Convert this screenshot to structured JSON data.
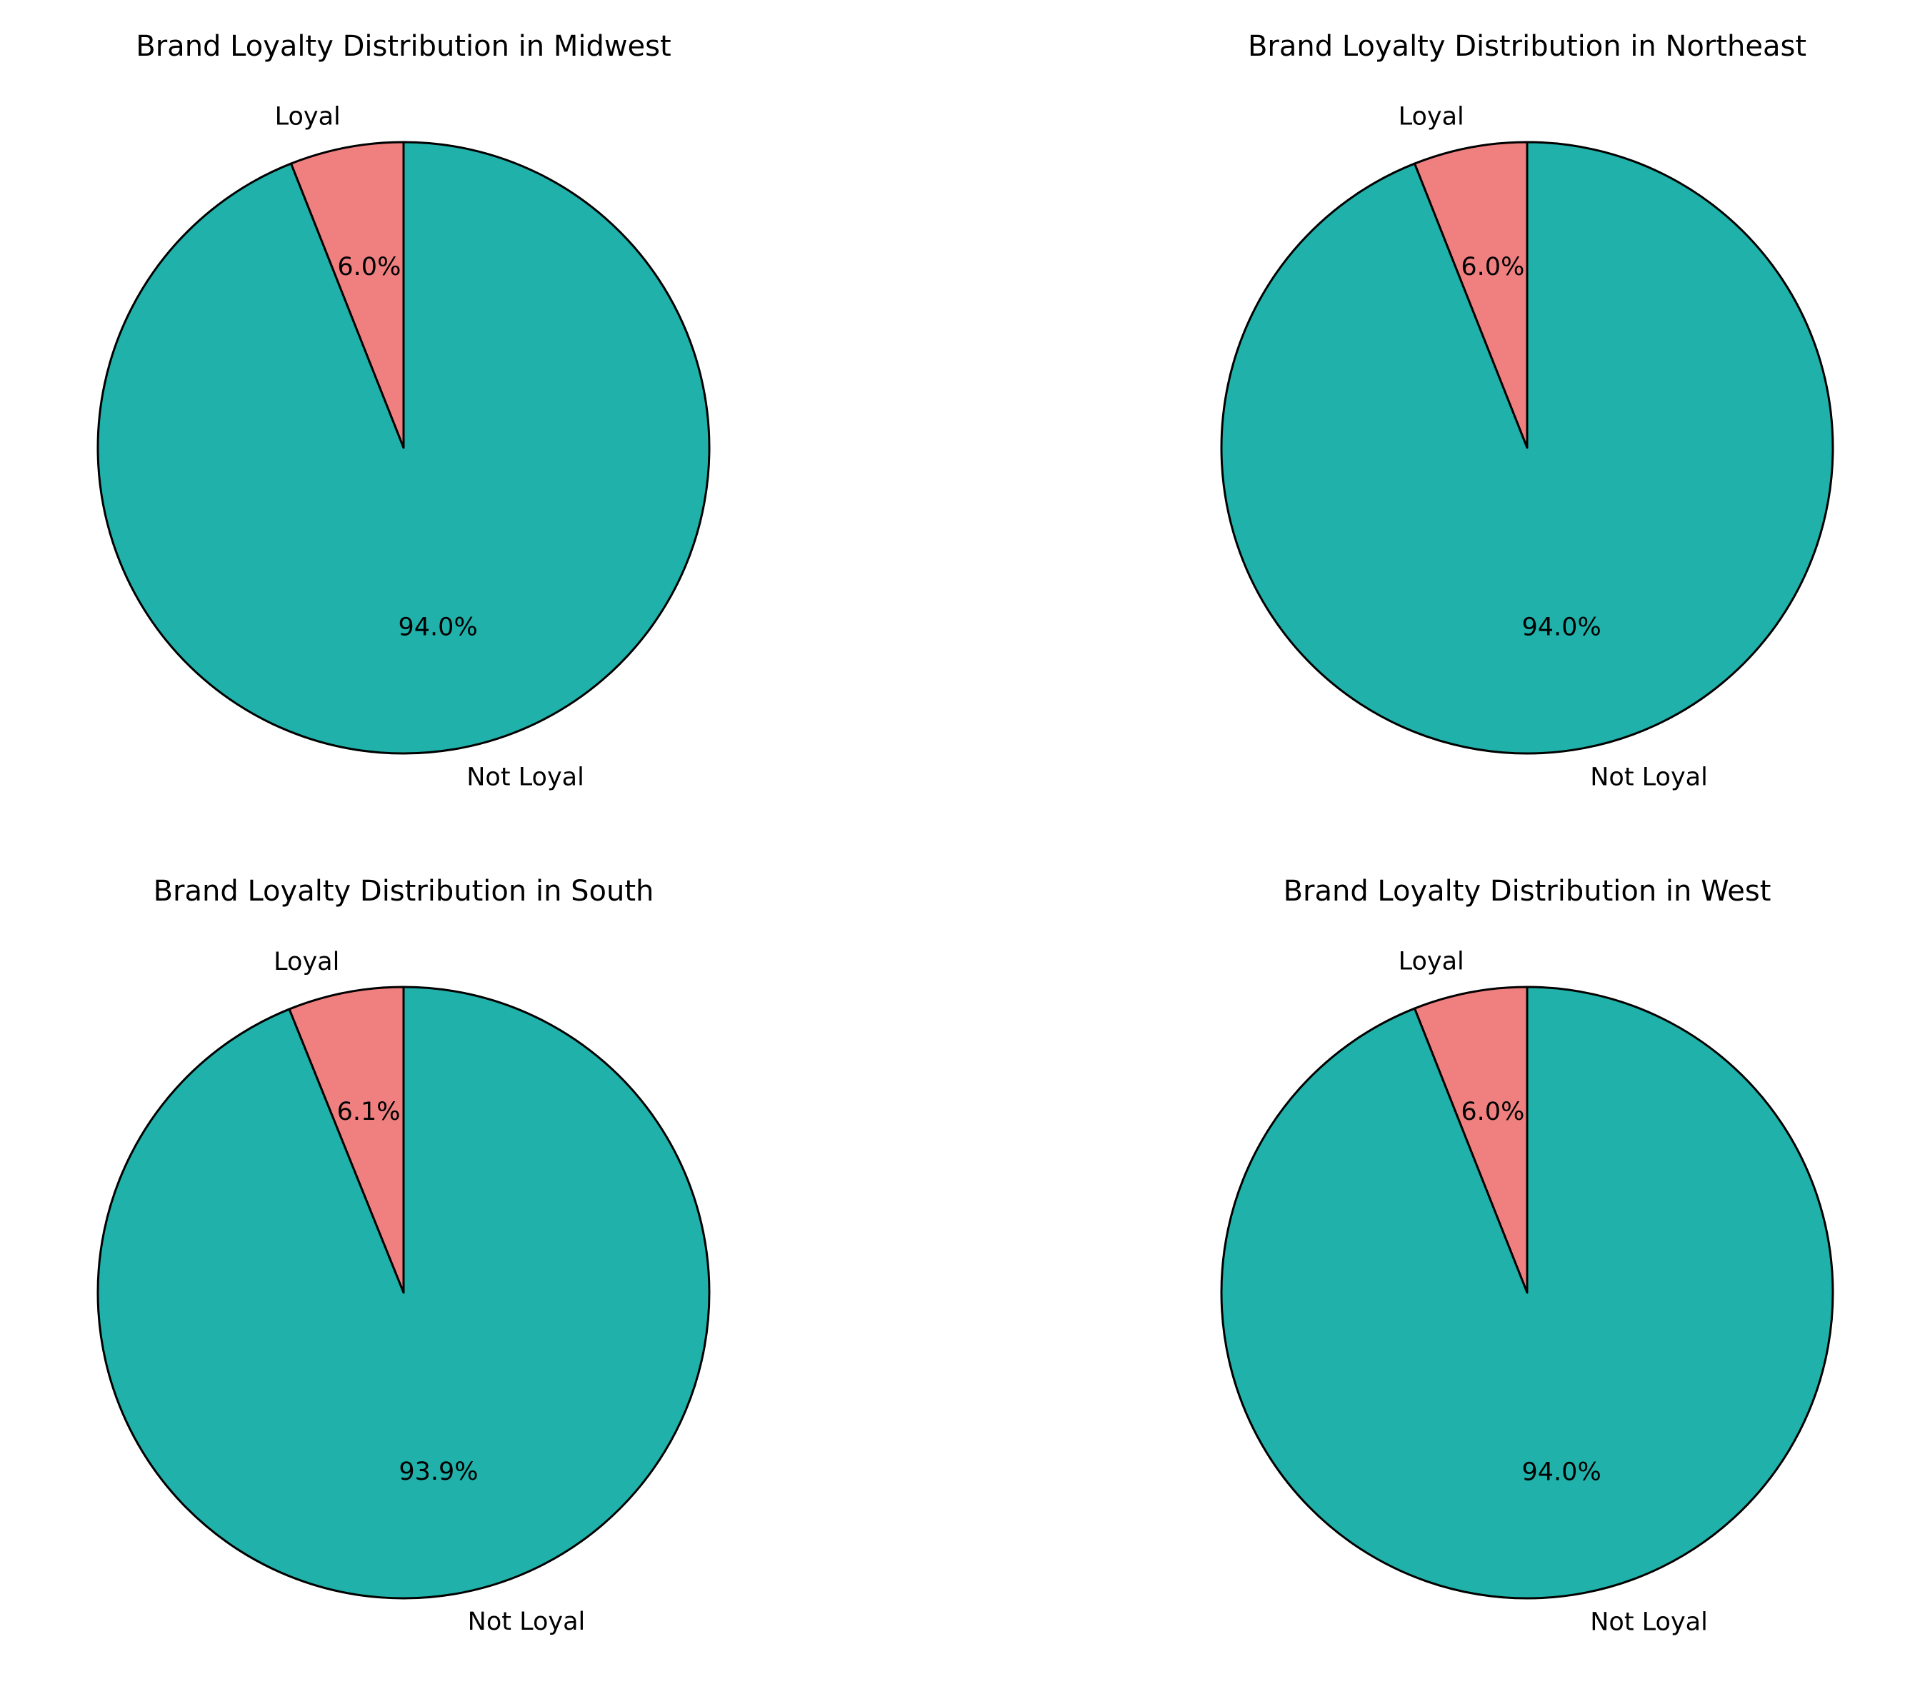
{
  "chart_data": [
    {
      "type": "pie",
      "title": "Brand Loyalty Distribution in Midwest",
      "categories": [
        "Loyal",
        "Not Loyal"
      ],
      "values": [
        6.0,
        94.0
      ],
      "percent_labels": [
        "6.0%",
        "94.0%"
      ],
      "colors": [
        "#f08080",
        "#20b2aa"
      ],
      "edge_color": "#000000"
    },
    {
      "type": "pie",
      "title": "Brand Loyalty Distribution in Northeast",
      "categories": [
        "Loyal",
        "Not Loyal"
      ],
      "values": [
        6.0,
        94.0
      ],
      "percent_labels": [
        "6.0%",
        "94.0%"
      ],
      "colors": [
        "#f08080",
        "#20b2aa"
      ],
      "edge_color": "#000000"
    },
    {
      "type": "pie",
      "title": "Brand Loyalty Distribution in South",
      "categories": [
        "Loyal",
        "Not Loyal"
      ],
      "values": [
        6.1,
        93.9
      ],
      "percent_labels": [
        "6.1%",
        "93.9%"
      ],
      "colors": [
        "#f08080",
        "#20b2aa"
      ],
      "edge_color": "#000000"
    },
    {
      "type": "pie",
      "title": "Brand Loyalty Distribution in West",
      "categories": [
        "Loyal",
        "Not Loyal"
      ],
      "values": [
        6.0,
        94.0
      ],
      "percent_labels": [
        "6.0%",
        "94.0%"
      ],
      "colors": [
        "#f08080",
        "#20b2aa"
      ],
      "edge_color": "#000000"
    }
  ]
}
